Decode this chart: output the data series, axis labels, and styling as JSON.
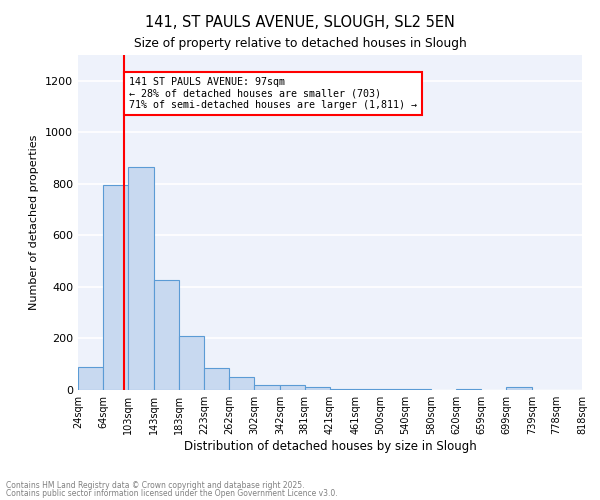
{
  "title1": "141, ST PAULS AVENUE, SLOUGH, SL2 5EN",
  "title2": "Size of property relative to detached houses in Slough",
  "xlabel": "Distribution of detached houses by size in Slough",
  "ylabel": "Number of detached properties",
  "bar_values": [
    90,
    795,
    865,
    425,
    210,
    85,
    50,
    20,
    20,
    12,
    5,
    5,
    5,
    5,
    1,
    5,
    1,
    12,
    0,
    0
  ],
  "bar_edges": [
    24,
    64,
    103,
    143,
    183,
    223,
    262,
    302,
    342,
    381,
    421,
    461,
    500,
    540,
    580,
    620,
    659,
    699,
    739,
    778,
    818
  ],
  "xtick_labels": [
    "24sqm",
    "64sqm",
    "103sqm",
    "143sqm",
    "183sqm",
    "223sqm",
    "262sqm",
    "302sqm",
    "342sqm",
    "381sqm",
    "421sqm",
    "461sqm",
    "500sqm",
    "540sqm",
    "580sqm",
    "620sqm",
    "659sqm",
    "699sqm",
    "739sqm",
    "778sqm",
    "818sqm"
  ],
  "bar_color": "#c8d9f0",
  "bar_edge_color": "#5b9bd5",
  "red_line_x": 97,
  "annotation_line1": "141 ST PAULS AVENUE: 97sqm",
  "annotation_line2": "← 28% of detached houses are smaller (703)",
  "annotation_line3": "71% of semi-detached houses are larger (1,811) →",
  "ylim_max": 1300,
  "yticks": [
    0,
    200,
    400,
    600,
    800,
    1000,
    1200
  ],
  "bg_color": "#eef2fb",
  "grid_color": "white",
  "footer1": "Contains HM Land Registry data © Crown copyright and database right 2025.",
  "footer2": "Contains public sector information licensed under the Open Government Licence v3.0."
}
